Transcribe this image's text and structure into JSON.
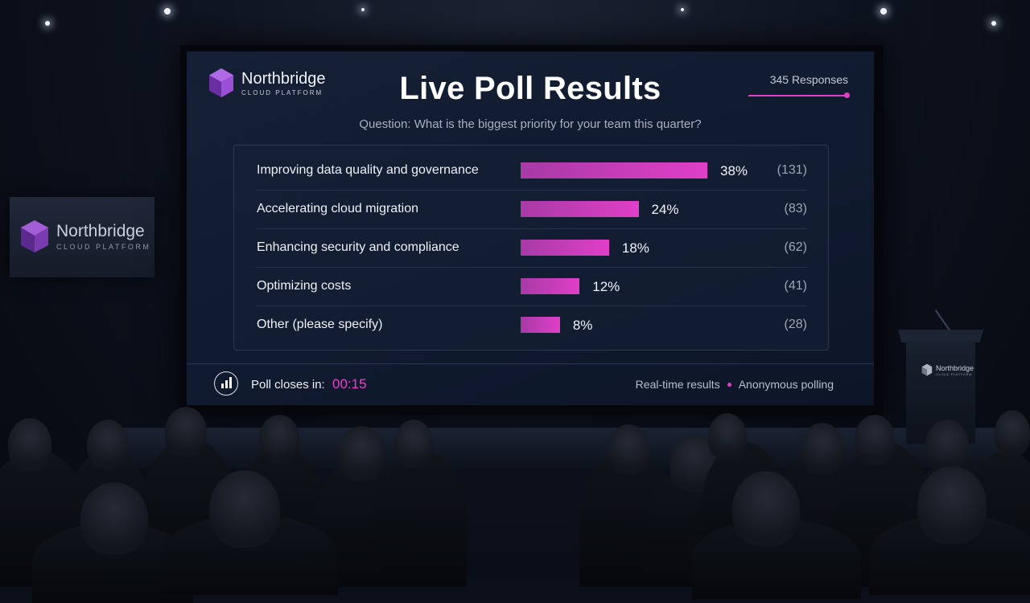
{
  "brand": {
    "name": "Northbridge",
    "tagline": "CLOUD PLATFORM"
  },
  "poll": {
    "title": "Live Poll Results",
    "responses_label": "345 Responses",
    "question": "Question: What is the biggest priority for your team this quarter?",
    "options": [
      {
        "label": "Improving data quality and governance",
        "percent": 38,
        "percent_label": "38%",
        "count_label": "(131)"
      },
      {
        "label": "Accelerating cloud migration",
        "percent": 24,
        "percent_label": "24%",
        "count_label": "(83)"
      },
      {
        "label": "Enhancing security and compliance",
        "percent": 18,
        "percent_label": "18%",
        "count_label": "(62)"
      },
      {
        "label": "Optimizing costs",
        "percent": 12,
        "percent_label": "12%",
        "count_label": "(41)"
      },
      {
        "label": "Other (please specify)",
        "percent": 8,
        "percent_label": "8%",
        "count_label": "(28)"
      }
    ]
  },
  "footer": {
    "closes_label": "Poll closes in:",
    "closes_time": "00:15",
    "realtime_label": "Real-time results",
    "anonymous_label": "Anonymous polling"
  },
  "colors": {
    "accent": "#e040c8",
    "bar_start": "#a83aa6",
    "bar_end": "#e03fc8",
    "screen_bg": "#111b2f"
  },
  "icons": [
    "hexagon-logo-icon",
    "bar-chart-icon"
  ]
}
